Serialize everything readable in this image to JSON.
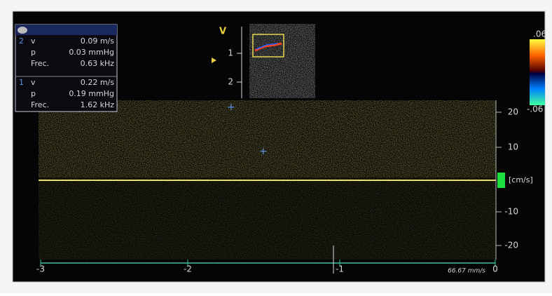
{
  "labels": {
    "mode": "V"
  },
  "depth_scale": [
    "1",
    "2"
  ],
  "color_scale": {
    "top": ".06",
    "bottom": "-.06"
  },
  "measurements": [
    {
      "index": "2",
      "rows": [
        [
          "v",
          "0.09 m/s"
        ],
        [
          "p",
          "0.03 mmHg"
        ],
        [
          "Frec.",
          "0.63 kHz"
        ]
      ]
    },
    {
      "index": "1",
      "rows": [
        [
          "v",
          "0.22 m/s"
        ],
        [
          "p",
          "0.19 mmHg"
        ],
        [
          "Frec.",
          "1.62 kHz"
        ]
      ]
    }
  ],
  "velocity_axis": {
    "ticks": [
      "20",
      "10",
      "-10",
      "-20"
    ],
    "unit": "[cm/s]"
  },
  "time_axis": {
    "ticks": [
      "-3",
      "-2",
      "-1",
      "0"
    ],
    "sweep_speed": "66.67 mm/s"
  }
}
